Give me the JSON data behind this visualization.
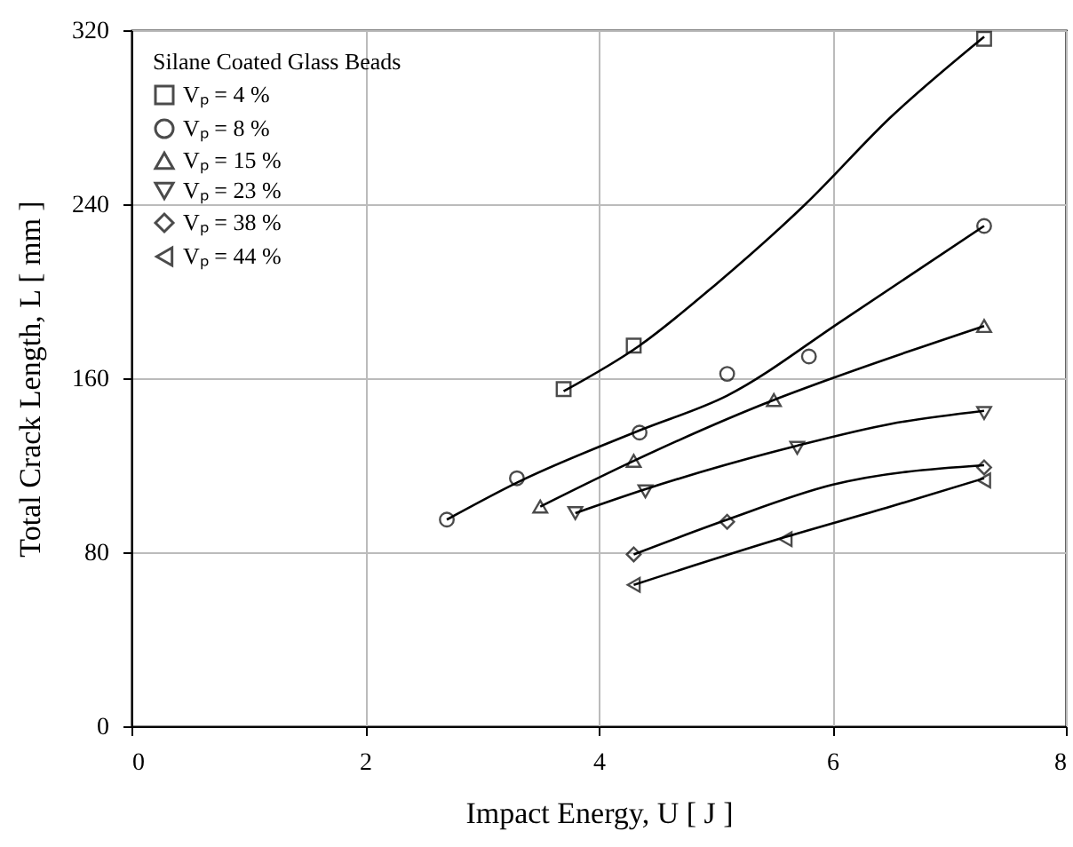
{
  "chart_data": {
    "type": "scatter",
    "xlabel": "Impact Energy, U  [ J ]",
    "ylabel": "Total Crack Length, L  [ mm ]",
    "legend_title": "Silane Coated Glass Beads",
    "legend": "top left",
    "grid": true,
    "xlim": [
      0,
      8
    ],
    "xticks": [
      0,
      2,
      4,
      6,
      8
    ],
    "ylim": [
      0,
      320
    ],
    "yticks": [
      0,
      80,
      160,
      240,
      320
    ],
    "series": [
      {
        "name": "Vₚ = 4 %",
        "marker": "square",
        "color": "#000000",
        "x": [
          3.7,
          4.3,
          7.3
        ],
        "values": [
          155,
          175,
          316
        ]
      },
      {
        "name": "Vₚ = 8 %",
        "marker": "circle",
        "color": "#000000",
        "x": [
          2.7,
          3.3,
          4.35,
          5.1,
          5.8,
          7.3
        ],
        "values": [
          95,
          114,
          135,
          162,
          170,
          230
        ]
      },
      {
        "name": "Vₚ = 15 %",
        "marker": "triangle-up",
        "color": "#000000",
        "x": [
          3.5,
          4.3,
          5.5,
          7.3
        ],
        "values": [
          101,
          122,
          150,
          184
        ]
      },
      {
        "name": "Vₚ = 23 %",
        "marker": "triangle-down",
        "color": "#000000",
        "x": [
          3.8,
          4.4,
          5.7,
          7.3
        ],
        "values": [
          98,
          108,
          128,
          144
        ]
      },
      {
        "name": "Vₚ = 38 %",
        "marker": "diamond",
        "color": "#000000",
        "x": [
          4.3,
          5.1,
          7.3
        ],
        "values": [
          79,
          94,
          119
        ]
      },
      {
        "name": "Vₚ = 44 %",
        "marker": "triangle-left",
        "color": "#000000",
        "x": [
          4.3,
          5.6,
          7.3
        ],
        "values": [
          65,
          86,
          113
        ]
      },
      {
        "type": "line",
        "color": "#000000",
        "x": [
          3.7,
          4.35,
          5,
          5.77,
          6.5,
          7.3
        ],
        "values": [
          154,
          175,
          203,
          240,
          280,
          317
        ]
      },
      {
        "type": "line",
        "color": "#000000",
        "x": [
          2.7,
          3.3,
          4.35,
          5.1,
          6.1,
          7.3
        ],
        "values": [
          95,
          112,
          136,
          152,
          187,
          230
        ]
      },
      {
        "type": "line",
        "color": "#000000",
        "x": [
          3.5,
          4.3,
          5.5,
          6,
          7.3
        ],
        "values": [
          101,
          122,
          150,
          160,
          184
        ]
      },
      {
        "type": "line",
        "color": "#000000",
        "x": [
          3.8,
          4.4,
          5.7,
          6.5,
          7.3
        ],
        "values": [
          98,
          109,
          129,
          139,
          145
        ]
      },
      {
        "type": "line",
        "color": "#000000",
        "x": [
          4.3,
          5.1,
          6,
          7.3
        ],
        "values": [
          79,
          95,
          111,
          120
        ]
      },
      {
        "type": "line",
        "color": "#000000",
        "x": [
          4.3,
          5.6,
          6.5,
          7.3
        ],
        "values": [
          65,
          87,
          101,
          114
        ]
      }
    ]
  }
}
